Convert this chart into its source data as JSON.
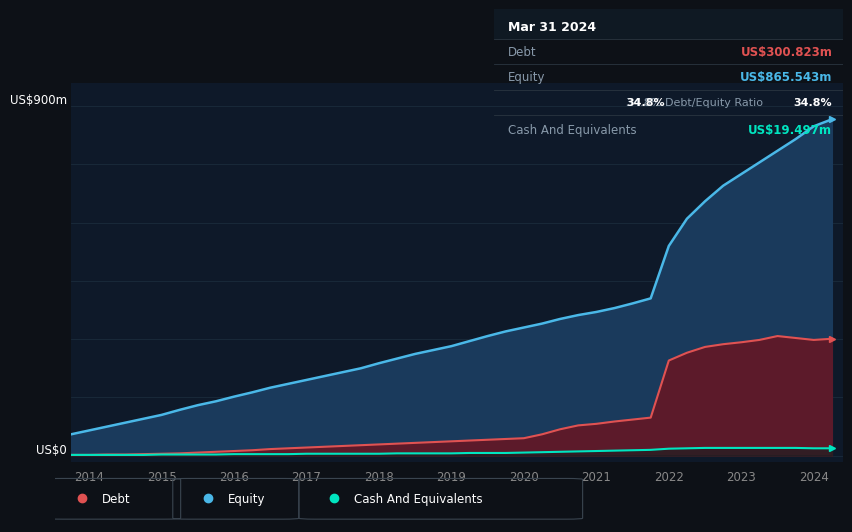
{
  "bg_color": "#0d1117",
  "plot_bg_color": "#0e1929",
  "grid_color": "#1a2b3c",
  "ylabel_text": "US$900m",
  "ylabel0_text": "US$0",
  "x_ticks": [
    2014,
    2015,
    2016,
    2017,
    2018,
    2019,
    2020,
    2021,
    2022,
    2023,
    2024
  ],
  "tooltip_title": "Mar 31 2024",
  "tooltip_debt_label": "Debt",
  "tooltip_debt_value": "US$300.823m",
  "tooltip_equity_label": "Equity",
  "tooltip_equity_value": "US$865.543m",
  "tooltip_ratio": "34.8%",
  "tooltip_ratio_label": "Debt/Equity Ratio",
  "tooltip_cash_label": "Cash And Equivalents",
  "tooltip_cash_value": "US$19.497m",
  "debt_color": "#e05252",
  "equity_color": "#4ab8e8",
  "cash_color": "#00e5c0",
  "equity_fill_color": "#1a3a5c",
  "debt_fill_color": "#5c1a2a",
  "years": [
    2013.75,
    2014.0,
    2014.25,
    2014.5,
    2014.75,
    2015.0,
    2015.25,
    2015.5,
    2015.75,
    2016.0,
    2016.25,
    2016.5,
    2016.75,
    2017.0,
    2017.25,
    2017.5,
    2017.75,
    2018.0,
    2018.25,
    2018.5,
    2018.75,
    2019.0,
    2019.25,
    2019.5,
    2019.75,
    2020.0,
    2020.25,
    2020.5,
    2020.75,
    2021.0,
    2021.25,
    2021.5,
    2021.75,
    2022.0,
    2022.25,
    2022.5,
    2022.75,
    2023.0,
    2023.25,
    2023.5,
    2023.75,
    2024.0,
    2024.25
  ],
  "equity": [
    55,
    65,
    75,
    85,
    95,
    105,
    118,
    130,
    140,
    152,
    163,
    175,
    185,
    195,
    205,
    215,
    225,
    238,
    250,
    262,
    272,
    282,
    295,
    308,
    320,
    330,
    340,
    352,
    362,
    370,
    380,
    392,
    405,
    540,
    610,
    655,
    695,
    725,
    755,
    785,
    815,
    848,
    866
  ],
  "debt": [
    2,
    2,
    3,
    3,
    4,
    5,
    6,
    8,
    10,
    12,
    14,
    17,
    19,
    21,
    23,
    25,
    27,
    29,
    31,
    33,
    35,
    37,
    39,
    41,
    43,
    45,
    55,
    68,
    78,
    82,
    88,
    93,
    98,
    245,
    265,
    280,
    287,
    292,
    298,
    308,
    303,
    298,
    301
  ],
  "cash": [
    2,
    2,
    2,
    2,
    2,
    3,
    3,
    3,
    3,
    4,
    4,
    4,
    4,
    5,
    5,
    5,
    5,
    5,
    6,
    6,
    6,
    6,
    7,
    7,
    7,
    8,
    9,
    10,
    11,
    12,
    13,
    14,
    15,
    18,
    19,
    20,
    20,
    20,
    20,
    20,
    20,
    19,
    19
  ],
  "ymax": 960,
  "ymin": -15,
  "xmin": 2013.75,
  "xmax": 2024.4,
  "legend_items": [
    "Debt",
    "Equity",
    "Cash And Equivalents"
  ],
  "legend_colors": [
    "#e05252",
    "#4ab8e8",
    "#00e5c0"
  ]
}
